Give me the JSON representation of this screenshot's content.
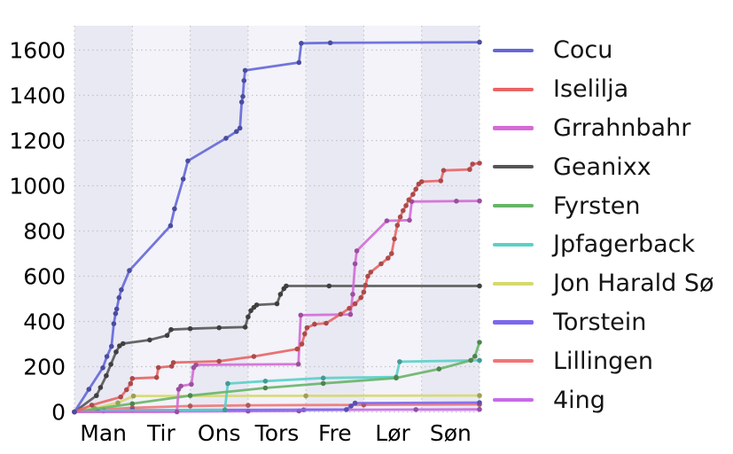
{
  "figure": {
    "background": "#ffffff",
    "band_color_odd": "#e9e9f4",
    "band_color_even": "#f3f3f9",
    "grid_color": "#c4c4c4",
    "tick_text_color": "#000000",
    "legend_text_color": "#141414"
  },
  "chart_data": {
    "type": "line",
    "title": "",
    "xlabel": "",
    "ylabel": "",
    "x_unit": "days (Mon-Sun), cumulative score over one week",
    "x_tick_labels": [
      "Man",
      "Tir",
      "Ons",
      "Tors",
      "Fre",
      "Lør",
      "Søn"
    ],
    "y_ticks": [
      0,
      200,
      400,
      600,
      800,
      1000,
      1200,
      1400,
      1600
    ],
    "ylim": [
      0,
      1700
    ],
    "xlim_days": [
      0,
      7
    ],
    "grid": "dotted",
    "legend_position": "right",
    "series": [
      {
        "name": "Cocu",
        "color": "#6467d8",
        "points": [
          [
            0,
            0
          ],
          [
            0.25,
            100
          ],
          [
            0.49,
            195
          ],
          [
            0.56,
            245
          ],
          [
            0.64,
            290
          ],
          [
            0.68,
            390
          ],
          [
            0.71,
            435
          ],
          [
            0.73,
            455
          ],
          [
            0.77,
            505
          ],
          [
            0.81,
            540
          ],
          [
            0.95,
            625
          ],
          [
            1.66,
            823
          ],
          [
            1.73,
            898
          ],
          [
            1.88,
            1030
          ],
          [
            1.96,
            1110
          ],
          [
            2.62,
            1210
          ],
          [
            2.8,
            1240
          ],
          [
            2.86,
            1255
          ],
          [
            2.89,
            1370
          ],
          [
            2.91,
            1395
          ],
          [
            2.93,
            1465
          ],
          [
            2.95,
            1510
          ],
          [
            3.88,
            1545
          ],
          [
            3.92,
            1630
          ],
          [
            4.42,
            1632
          ],
          [
            7,
            1635
          ]
        ]
      },
      {
        "name": "Iselilja",
        "color": "#e96464",
        "points": [
          [
            0,
            0
          ],
          [
            0.3,
            30
          ],
          [
            0.8,
            66
          ],
          [
            0.9,
            98
          ],
          [
            0.97,
            125
          ],
          [
            1.0,
            148
          ],
          [
            1.42,
            152
          ],
          [
            1.45,
            196
          ],
          [
            1.68,
            202
          ],
          [
            1.71,
            218
          ],
          [
            2.5,
            224
          ],
          [
            3.1,
            245
          ],
          [
            3.85,
            278
          ],
          [
            3.93,
            300
          ],
          [
            3.98,
            345
          ],
          [
            4.02,
            372
          ],
          [
            4.15,
            388
          ],
          [
            4.35,
            392
          ],
          [
            4.6,
            432
          ],
          [
            4.75,
            458
          ],
          [
            4.85,
            478
          ],
          [
            4.95,
            505
          ],
          [
            5.0,
            530
          ],
          [
            5.03,
            560
          ],
          [
            5.07,
            600
          ],
          [
            5.12,
            618
          ],
          [
            5.3,
            655
          ],
          [
            5.42,
            680
          ],
          [
            5.48,
            700
          ],
          [
            5.53,
            765
          ],
          [
            5.58,
            825
          ],
          [
            5.63,
            862
          ],
          [
            5.68,
            890
          ],
          [
            5.73,
            912
          ],
          [
            5.78,
            938
          ],
          [
            5.85,
            962
          ],
          [
            5.9,
            985
          ],
          [
            5.95,
            1008
          ],
          [
            6.0,
            1018
          ],
          [
            6.33,
            1022
          ],
          [
            6.38,
            1068
          ],
          [
            6.83,
            1072
          ],
          [
            6.88,
            1096
          ],
          [
            7,
            1100
          ]
        ]
      },
      {
        "name": "Grrahnbahr",
        "color": "#d46ad6",
        "points": [
          [
            0,
            0
          ],
          [
            1.77,
            0
          ],
          [
            1.8,
            100
          ],
          [
            1.84,
            114
          ],
          [
            2.02,
            122
          ],
          [
            2.06,
            196
          ],
          [
            2.1,
            208
          ],
          [
            3.87,
            211
          ],
          [
            3.91,
            428
          ],
          [
            4.77,
            431
          ],
          [
            4.81,
            520
          ],
          [
            4.85,
            655
          ],
          [
            4.88,
            712
          ],
          [
            5.4,
            845
          ],
          [
            5.79,
            848
          ],
          [
            5.83,
            930
          ],
          [
            6.6,
            932
          ],
          [
            7,
            933
          ]
        ]
      },
      {
        "name": "Geanixx",
        "color": "#555555",
        "points": [
          [
            0,
            0
          ],
          [
            0.38,
            72
          ],
          [
            0.45,
            108
          ],
          [
            0.55,
            160
          ],
          [
            0.63,
            210
          ],
          [
            0.72,
            265
          ],
          [
            0.78,
            292
          ],
          [
            0.84,
            302
          ],
          [
            1.3,
            318
          ],
          [
            1.6,
            338
          ],
          [
            1.67,
            364
          ],
          [
            2.0,
            368
          ],
          [
            2.5,
            372
          ],
          [
            2.95,
            375
          ],
          [
            3.0,
            420
          ],
          [
            3.05,
            448
          ],
          [
            3.1,
            462
          ],
          [
            3.15,
            473
          ],
          [
            3.5,
            478
          ],
          [
            3.56,
            520
          ],
          [
            3.62,
            545
          ],
          [
            3.66,
            557
          ],
          [
            4.4,
            557
          ],
          [
            7,
            557
          ]
        ]
      },
      {
        "name": "Fyrsten",
        "color": "#68b468",
        "points": [
          [
            0,
            0
          ],
          [
            1,
            36
          ],
          [
            2,
            72
          ],
          [
            3.3,
            106
          ],
          [
            4.3,
            126
          ],
          [
            5.56,
            150
          ],
          [
            6.3,
            190
          ],
          [
            6.85,
            228
          ],
          [
            6.92,
            246
          ],
          [
            7,
            308
          ]
        ]
      },
      {
        "name": "Jpfagerback",
        "color": "#5ad0c8",
        "points": [
          [
            0,
            0
          ],
          [
            0.4,
            6
          ],
          [
            2.6,
            9
          ],
          [
            2.65,
            125
          ],
          [
            3.3,
            136
          ],
          [
            4.3,
            150
          ],
          [
            5.56,
            154
          ],
          [
            5.62,
            222
          ],
          [
            7,
            228
          ]
        ]
      },
      {
        "name": "Jon Harald Sø",
        "color": "#d6d86e",
        "points": [
          [
            0,
            0
          ],
          [
            0.35,
            16
          ],
          [
            0.75,
            40
          ],
          [
            1.02,
            70
          ],
          [
            4,
            71
          ],
          [
            7,
            72
          ]
        ]
      },
      {
        "name": "Torstein",
        "color": "#7b68ee",
        "points": [
          [
            0,
            0
          ],
          [
            0.5,
            4
          ],
          [
            1,
            8
          ],
          [
            4.7,
            10
          ],
          [
            4.78,
            26
          ],
          [
            4.85,
            39
          ],
          [
            7,
            41
          ]
        ]
      },
      {
        "name": "Lillingen",
        "color": "#f17676",
        "points": [
          [
            0,
            0
          ],
          [
            0.5,
            10
          ],
          [
            1.0,
            18
          ],
          [
            2.0,
            26
          ],
          [
            3.0,
            29
          ],
          [
            5,
            31
          ],
          [
            7,
            33
          ]
        ]
      },
      {
        "name": "4ing",
        "color": "#c76ae6",
        "points": [
          [
            0,
            0
          ],
          [
            3.0,
            3
          ],
          [
            3.88,
            4
          ],
          [
            3.96,
            9
          ],
          [
            5.9,
            10
          ],
          [
            7,
            11
          ]
        ]
      }
    ]
  }
}
